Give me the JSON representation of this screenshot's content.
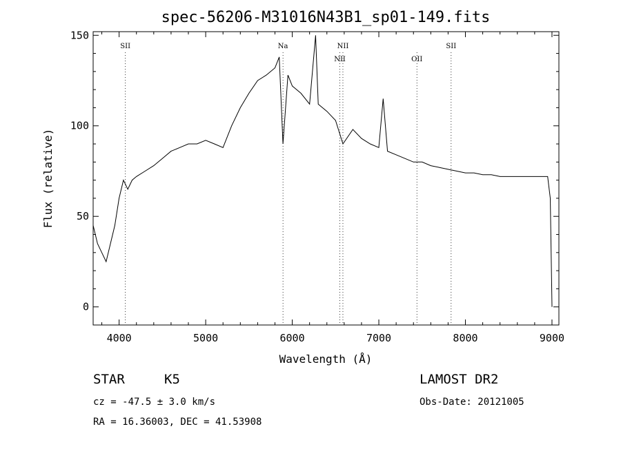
{
  "chart_data": {
    "type": "line",
    "title": "spec-56206-M31016N43B1_sp01-149.fits",
    "xlabel": "Wavelength (Å)",
    "ylabel": "Flux (relative)",
    "xlim": [
      3700,
      9080
    ],
    "ylim": [
      -10,
      152
    ],
    "x_ticks": [
      4000,
      5000,
      6000,
      7000,
      8000,
      9000
    ],
    "y_ticks": [
      0,
      50,
      100,
      150
    ],
    "grid": false,
    "spectral_lines": [
      {
        "label": "SII",
        "wavelength": 4072,
        "row": 1
      },
      {
        "label": "Na",
        "wavelength": 5893,
        "row": 1
      },
      {
        "label": "NII",
        "wavelength": 6550,
        "row": 2
      },
      {
        "label": "NII",
        "wavelength": 6585,
        "row": 1
      },
      {
        "label": "OII",
        "wavelength": 7440,
        "row": 2
      },
      {
        "label": "SII",
        "wavelength": 7835,
        "row": 1
      }
    ],
    "series": [
      {
        "x": [
          3700,
          3750,
          3800,
          3850,
          3900,
          3950,
          4000,
          4050,
          4100,
          4150,
          4200,
          4300,
          4400,
          4500,
          4600,
          4700,
          4800,
          4900,
          5000,
          5100,
          5200,
          5300,
          5400,
          5500,
          5600,
          5700,
          5800,
          5850,
          5893,
          5950,
          6000,
          6100,
          6200,
          6270,
          6300,
          6400,
          6500,
          6585,
          6700,
          6800,
          6900,
          7000,
          7050,
          7100,
          7200,
          7300,
          7400,
          7500,
          7600,
          7700,
          7800,
          7900,
          8000,
          8100,
          8200,
          8300,
          8400,
          8500,
          8600,
          8700,
          8800,
          8900,
          8950,
          8980,
          9000
        ],
        "y": [
          45,
          35,
          30,
          25,
          35,
          45,
          60,
          70,
          65,
          70,
          72,
          75,
          78,
          82,
          86,
          88,
          90,
          90,
          92,
          90,
          88,
          100,
          110,
          118,
          125,
          128,
          132,
          138,
          90,
          128,
          122,
          118,
          112,
          150,
          112,
          108,
          103,
          90,
          98,
          93,
          90,
          88,
          115,
          86,
          84,
          82,
          80,
          80,
          78,
          77,
          76,
          75,
          74,
          74,
          73,
          73,
          72,
          72,
          72,
          72,
          72,
          72,
          72,
          60,
          0
        ]
      }
    ]
  },
  "footer": {
    "object_class": "STAR",
    "subclass": "K5",
    "survey": "LAMOST DR2",
    "cz": "cz = -47.5 ± 3.0 km/s",
    "obs_date": "Obs-Date: 20121005",
    "coords": "RA =  16.36003, DEC =  41.53908"
  }
}
